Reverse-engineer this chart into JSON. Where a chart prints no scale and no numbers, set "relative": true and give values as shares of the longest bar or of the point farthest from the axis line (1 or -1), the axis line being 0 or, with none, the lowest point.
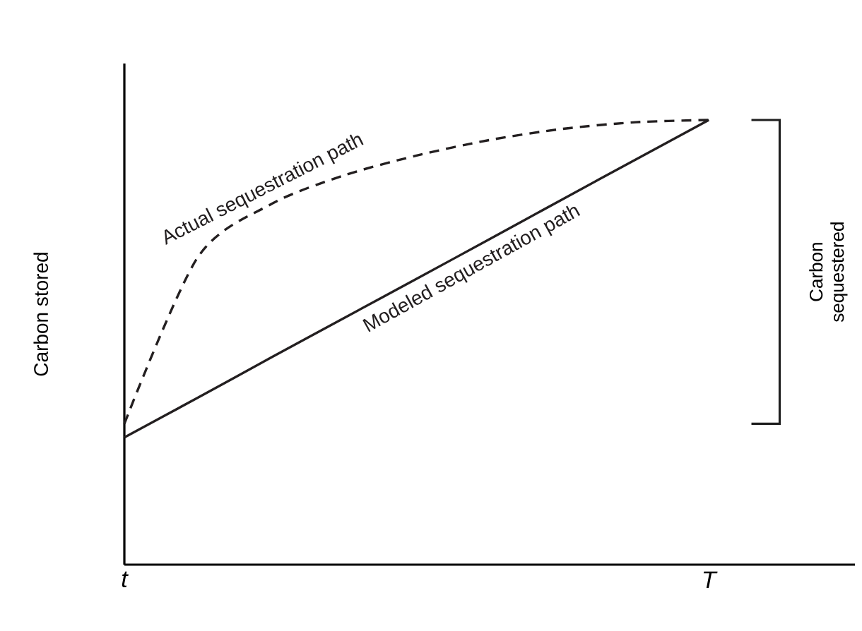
{
  "chart_data": {
    "type": "line",
    "relative": true,
    "ylabel": "Carbon stored",
    "categories": [
      "t",
      null,
      null,
      null,
      null,
      null,
      null,
      null,
      "T",
      null,
      null
    ],
    "tick_labels": "x",
    "marker": "none",
    "series": [
      {
        "name": "Actual sequestration path",
        "color": "#231f20",
        "line_style": "dashed",
        "values": [
          0.317,
          0.69,
          0.81,
          0.875,
          0.92,
          0.955,
          0.98,
          0.995,
          1,
          null,
          null
        ]
      },
      {
        "name": "Modeled sequestration path",
        "color": "#231f20",
        "line_style": "solid",
        "values": [
          0.286,
          0.375,
          0.465,
          0.554,
          0.643,
          0.732,
          0.822,
          0.911,
          1,
          null,
          null
        ]
      }
    ],
    "annotations": [
      "Carbon sequestered"
    ]
  }
}
